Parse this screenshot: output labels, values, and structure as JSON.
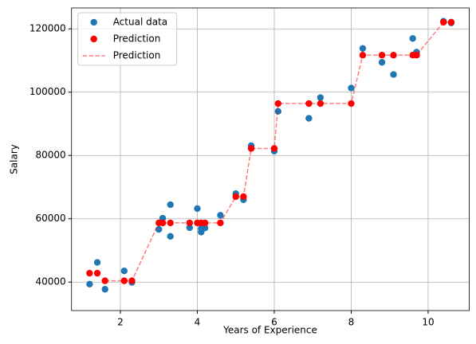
{
  "chart_data": {
    "type": "scatter",
    "x_label": "Years of Experience",
    "y_label": "Salary",
    "xlim": [
      0.73,
      11.07
    ],
    "ylim": [
      31000,
      126600
    ],
    "xticks": [
      2,
      4,
      6,
      8,
      10
    ],
    "yticks": [
      40000,
      60000,
      80000,
      100000,
      120000
    ],
    "grid": true,
    "legend": "upper-left",
    "series": [
      {
        "name": "Actual data",
        "kind": "scatter",
        "color": "#1f77b4",
        "x": [
          1.2,
          1.4,
          1.6,
          2.1,
          2.3,
          3.0,
          3.1,
          3.3,
          3.3,
          3.8,
          4.0,
          4.1,
          4.1,
          4.2,
          4.6,
          5.0,
          5.2,
          5.4,
          6.0,
          6.1,
          6.9,
          7.2,
          8.0,
          8.3,
          8.8,
          9.1,
          9.6,
          9.7,
          10.4,
          10.6
        ],
        "values": [
          39343,
          46205,
          37731,
          43525,
          39891,
          56642,
          60150,
          54445,
          64445,
          57189,
          63218,
          55794,
          56957,
          57081,
          61111,
          67938,
          66029,
          83088,
          81363,
          93940,
          91738,
          98273,
          101302,
          113812,
          109431,
          105582,
          116969,
          112635,
          122391,
          121872
        ]
      },
      {
        "name": "Prediction",
        "kind": "scatter",
        "color": "#ff0000",
        "x": [
          1.2,
          1.4,
          1.6,
          2.1,
          2.3,
          3.0,
          3.1,
          3.3,
          3.8,
          4.0,
          4.1,
          4.2,
          4.6,
          5.0,
          5.2,
          5.4,
          6.0,
          6.1,
          6.9,
          7.2,
          8.0,
          8.3,
          8.8,
          9.1,
          9.6,
          9.7,
          10.4,
          10.6
        ],
        "values": [
          42800,
          42800,
          40400,
          40400,
          40400,
          58700,
          58700,
          58700,
          58700,
          58700,
          58700,
          58700,
          58700,
          67000,
          67000,
          82200,
          82200,
          96400,
          96400,
          96400,
          96400,
          111700,
          111700,
          111700,
          111700,
          111700,
          122100,
          122100
        ]
      },
      {
        "name": "Prediction",
        "kind": "line",
        "dashed": true,
        "alpha": 0.5,
        "color": "#ff0000",
        "x": [
          1.6,
          2.1,
          2.3,
          3.0,
          3.1,
          3.3,
          3.8,
          4.0,
          4.1,
          4.2,
          4.6,
          5.0,
          5.2,
          5.4,
          6.0,
          6.1,
          6.9,
          7.2,
          8.0,
          8.3,
          8.8,
          9.1,
          9.6,
          9.7,
          10.4,
          10.6
        ],
        "values": [
          40400,
          40400,
          40400,
          58700,
          58700,
          58700,
          58700,
          58700,
          58700,
          58700,
          58700,
          67000,
          67000,
          82200,
          82200,
          96400,
          96400,
          96400,
          96400,
          111700,
          111700,
          111700,
          111700,
          111700,
          122100,
          122100
        ]
      }
    ]
  }
}
